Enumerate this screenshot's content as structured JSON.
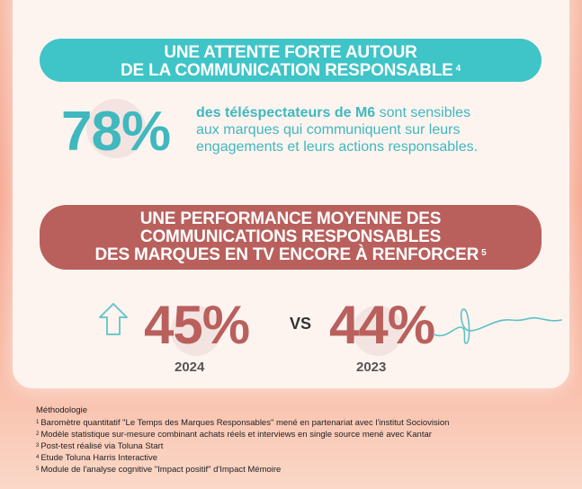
{
  "section1": {
    "banner_line1": "UNE ATTENTE FORTE AUTOUR",
    "banner_line2": "DE LA COMMUNICATION RESPONSABLE",
    "banner_ref": "4",
    "stat_value": "78%",
    "stat_desc_bold": "des téléspectateurs de M6",
    "stat_desc_rest1": " sont sensibles",
    "stat_desc_line2": "aux marques qui communiquent sur leurs",
    "stat_desc_line3": "engagements et leurs actions responsables."
  },
  "section2": {
    "banner_line1": "UNE PERFORMANCE MOYENNE DES",
    "banner_line2": "COMMUNICATIONS RESPONSABLES",
    "banner_line3": "DES MARQUES EN TV ENCORE À RENFORCER",
    "banner_ref": "5",
    "value_2024": "45%",
    "year_2024": "2024",
    "vs": "VS",
    "value_2023": "44%",
    "year_2023": "2023"
  },
  "colors": {
    "teal": "#3fc4c7",
    "brick": "#b9605d",
    "background": "#f7b9a4"
  },
  "icons": [
    "up-arrow-icon",
    "squiggle-line-icon"
  ],
  "methodology": {
    "title": "Méthodologie",
    "notes": [
      {
        "ref": "1",
        "text": "Baromètre quantitatif \"Le Temps des Marques Responsables\" mené en partenariat avec l'institut Sociovision"
      },
      {
        "ref": "2",
        "text": "Modèle statistique sur-mesure combinant achats réels et interviews en single source mené avec Kantar"
      },
      {
        "ref": "3",
        "text": "Post-test réalisé via Toluna Start"
      },
      {
        "ref": "4",
        "text": "Etude Toluna Harris Interactive"
      },
      {
        "ref": "5",
        "text": "Module de l'analyse cognitive \"Impact positif\" d'Impact Mémoire"
      }
    ]
  }
}
